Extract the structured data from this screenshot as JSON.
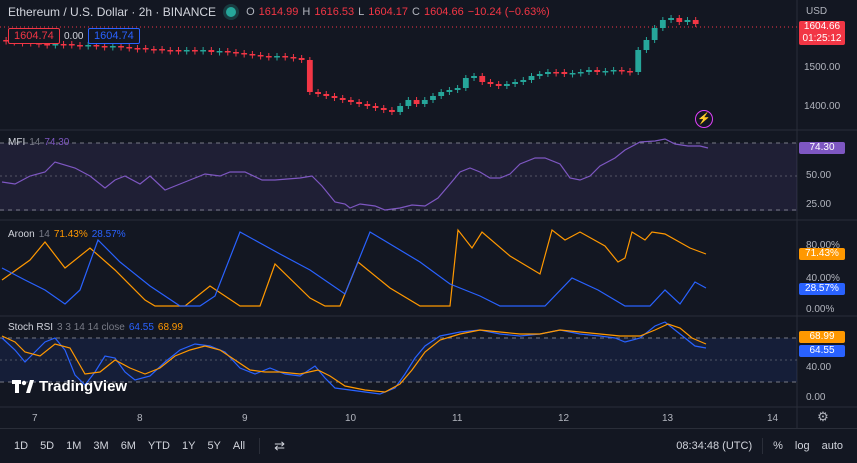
{
  "header": {
    "symbol": "Ethereum / U.S. Dollar · 2h · BINANCE",
    "o_label": "O",
    "o_value": "1614.99",
    "h_label": "H",
    "h_value": "1616.53",
    "l_label": "L",
    "l_value": "1604.17",
    "c_label": "C",
    "c_value": "1604.66",
    "change": "−10.24 (−0.63%)",
    "sell_price": "1604.74",
    "spread": "0.00",
    "buy_price": "1604.74"
  },
  "price_axis": {
    "currency": "USD",
    "last_price": "1604.66",
    "countdown": "01:25:12",
    "ticks": [
      "1500.00",
      "1400.00"
    ]
  },
  "mfi": {
    "name": "MFI",
    "param": "14",
    "value": "74.30",
    "ticks": [
      "50.00",
      "25.00"
    ]
  },
  "aroon": {
    "name": "Aroon",
    "param": "14",
    "up": "71.43%",
    "down": "28.57%",
    "ticks": [
      "80.00%",
      "40.00%",
      "0.00%"
    ]
  },
  "stoch": {
    "name": "Stoch RSI",
    "param": "3 3 14 14 close",
    "k": "64.55",
    "d": "68.99",
    "ticks": [
      "40.00",
      "0.00"
    ]
  },
  "time_axis": {
    "labels": [
      "7",
      "8",
      "9",
      "10",
      "11",
      "12",
      "13",
      "14"
    ]
  },
  "toolbar": {
    "ranges": [
      "1D",
      "5D",
      "1M",
      "3M",
      "6M",
      "YTD",
      "1Y",
      "5Y",
      "All"
    ],
    "time": "08:34:48 (UTC)",
    "percent": "%",
    "log": "log",
    "auto": "auto"
  },
  "watermark": "TradingView",
  "colors": {
    "bg": "#131722",
    "up": "#26a69a",
    "down": "#f23645",
    "mfi": "#7e57c2",
    "aroon_up": "#ff9800",
    "aroon_down": "#2962ff"
  }
}
